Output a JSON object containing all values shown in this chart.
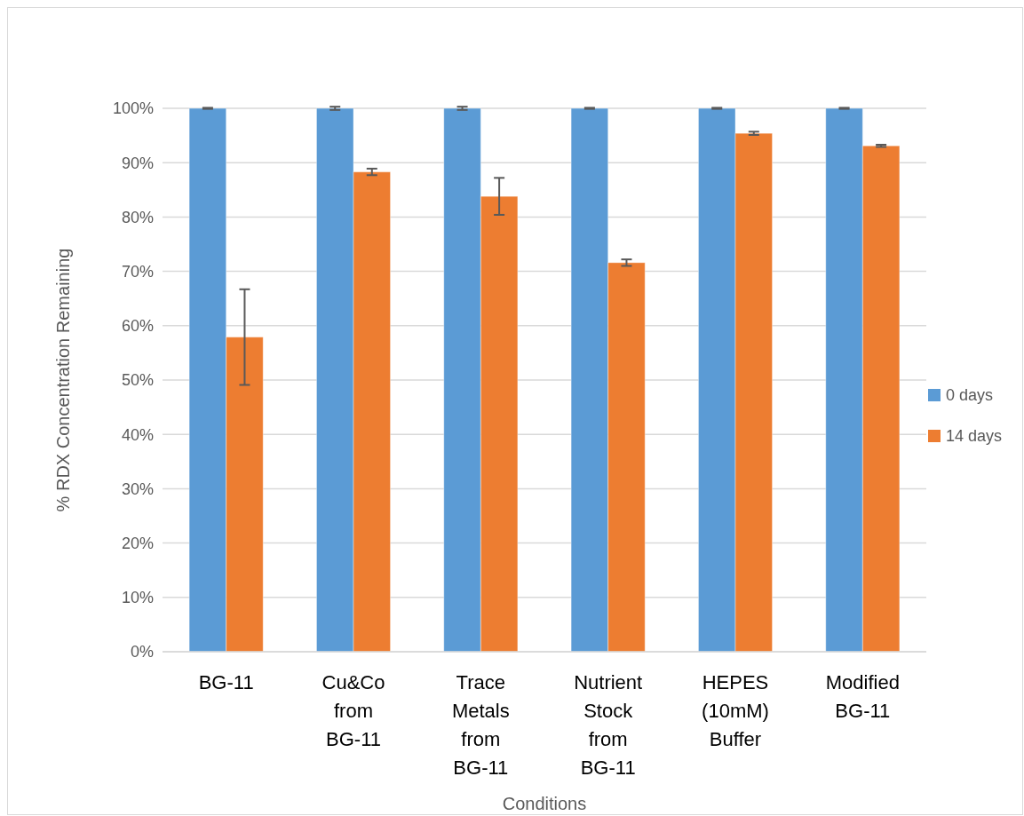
{
  "chart_data": {
    "type": "bar",
    "xlabel": "Conditions",
    "ylabel": "% RDX Concentration Remaining",
    "categories": [
      "BG-11",
      "Cu&Co from BG-11",
      "Trace Metals from BG-11",
      "Nutrient Stock from BG-11",
      "HEPES (10mM) Buffer",
      "Modified BG-11"
    ],
    "series": [
      {
        "name": "0 days",
        "color": "#5b9bd5",
        "values": [
          100,
          100,
          100,
          100,
          100,
          100
        ],
        "errors": [
          0.1,
          0.3,
          0.3,
          0.1,
          0.1,
          0.1
        ]
      },
      {
        "name": "14 days",
        "color": "#ed7d31",
        "values": [
          57.9,
          88.3,
          83.8,
          71.6,
          95.4,
          93.1
        ],
        "errors": [
          8.8,
          0.6,
          3.4,
          0.6,
          0.3,
          0.2
        ]
      }
    ],
    "ylim": [
      0,
      100
    ],
    "yticks": [
      {
        "value": 0,
        "label": "0%"
      },
      {
        "value": 10,
        "label": "10%"
      },
      {
        "value": 20,
        "label": "20%"
      },
      {
        "value": 30,
        "label": "30%"
      },
      {
        "value": 40,
        "label": "40%"
      },
      {
        "value": 50,
        "label": "50%"
      },
      {
        "value": 60,
        "label": "60%"
      },
      {
        "value": 70,
        "label": "70%"
      },
      {
        "value": 80,
        "label": "80%"
      },
      {
        "value": 90,
        "label": "90%"
      },
      {
        "value": 100,
        "label": "100%"
      }
    ],
    "grid": "y",
    "legend": "right"
  }
}
